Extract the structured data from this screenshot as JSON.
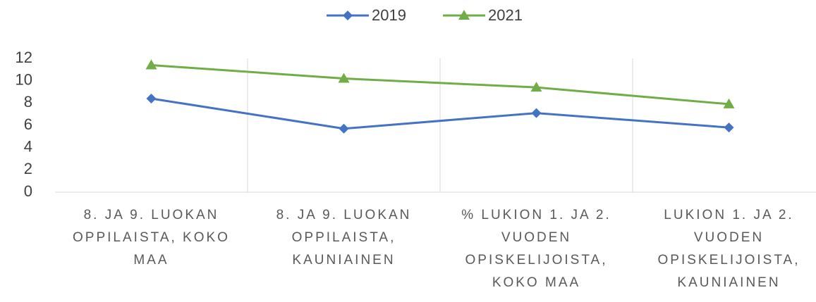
{
  "chart_data": {
    "type": "line",
    "categories": [
      "8. JA 9. LUOKAN OPPILAISTA, KOKO MAA",
      "8. JA 9. LUOKAN OPPILAISTA, KAUNIAINEN",
      "% LUKION 1. JA 2. VUODEN OPISKELIJOISTA, KOKO MAA",
      "LUKION 1. JA 2. VUODEN OPISKELIJOISTA, KAUNIAINEN"
    ],
    "series": [
      {
        "name": "2019",
        "color": "#4472c4",
        "marker": "diamond",
        "values": [
          8.4,
          5.7,
          7.1,
          5.8
        ]
      },
      {
        "name": "2021",
        "color": "#70ad47",
        "marker": "triangle",
        "values": [
          11.4,
          10.2,
          9.4,
          7.9
        ]
      }
    ],
    "ylim": [
      0,
      12
    ],
    "yticks": [
      0,
      2,
      4,
      6,
      8,
      10,
      12
    ],
    "legend": "top"
  }
}
